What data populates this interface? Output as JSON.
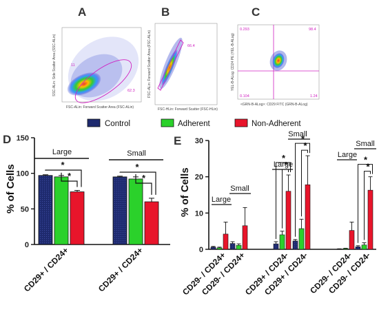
{
  "panels": {
    "A": "A",
    "B": "B",
    "C": "C",
    "D": "D",
    "E": "E"
  },
  "legend": [
    {
      "label": "Control",
      "color": "#1e2a6e"
    },
    {
      "label": "Adherent",
      "color": "#2bd12b"
    },
    {
      "label": "Non-Adherent",
      "color": "#e8152b"
    }
  ],
  "flow": {
    "A": {
      "xlabel": "FSC-ALin: Forward Scatter Area (FSC-ALin)",
      "ylabel": "SSC-ALin: Side Scatter Area (SSC-ALin)",
      "gate_value": "62.3",
      "inner_value": "11"
    },
    "B": {
      "xlabel": "FSC-HLin: Forward Scatter (FSC-HLin)",
      "ylabel": "FSC-ALin: Forward Scatter Area (FSC-ALin)",
      "gate_value": "66.4"
    },
    "C": {
      "xlabel": "<GRN-B-ALog>: CD29 FITC (GRN-B-ALog)",
      "ylabel": "YEL-B-ALog: CD24 PE (YEL-B-ALog)",
      "q_tl": "0.293",
      "q_tr": "98.4",
      "q_bl": "0.104",
      "q_br": "1.24"
    }
  },
  "chart_data": [
    {
      "panel": "D",
      "type": "bar",
      "ylabel": "% of Cells",
      "ylim": [
        0,
        150
      ],
      "yticks": [
        0,
        50,
        100,
        150
      ],
      "groups": [
        {
          "label": "CD29+ / CD24+",
          "size": "Large",
          "values": [
            97,
            95,
            74
          ],
          "errors": [
            1,
            2,
            2
          ]
        },
        {
          "label": "CD29+ / CD24+",
          "size": "Small",
          "values": [
            95,
            92,
            60
          ],
          "errors": [
            1,
            3,
            5
          ]
        }
      ],
      "series": [
        "Control",
        "Adherent",
        "Non-Adherent"
      ],
      "significance": [
        "*",
        "*",
        "*",
        "*"
      ]
    },
    {
      "panel": "E",
      "type": "bar",
      "ylabel": "% of Cells",
      "ylim": [
        0,
        30
      ],
      "yticks": [
        0,
        10,
        20,
        30
      ],
      "groups": [
        {
          "label": "CD29- / CD24+",
          "size": "Large",
          "values": [
            0.6,
            0.4,
            4.2
          ],
          "errors": [
            0.2,
            0.2,
            3.3
          ]
        },
        {
          "label": "CD29- / CD24+",
          "size": "Small",
          "values": [
            1.6,
            1.1,
            6.5
          ],
          "errors": [
            0.5,
            0.4,
            5.0
          ]
        },
        {
          "label": "CD29+ / CD24-",
          "size": "Large",
          "values": [
            1.5,
            4.0,
            16.0
          ],
          "errors": [
            0.6,
            1.0,
            4.5
          ]
        },
        {
          "label": "CD29+ / CD24-",
          "size": "Small",
          "values": [
            2.3,
            5.7,
            17.8
          ],
          "errors": [
            0.4,
            2.6,
            8.0
          ]
        },
        {
          "label": "CD29- / CD24-",
          "size": "Large",
          "values": [
            0.1,
            0.2,
            5.2
          ],
          "errors": [
            0.05,
            0.1,
            2.3
          ]
        },
        {
          "label": "CD29- / CD24-",
          "size": "Small",
          "values": [
            0.7,
            1.2,
            16.3
          ],
          "errors": [
            0.3,
            0.6,
            3.7
          ]
        }
      ],
      "series": [
        "Control",
        "Adherent",
        "Non-Adherent"
      ],
      "significance": [
        "*",
        "*",
        "*",
        "*",
        "*",
        "*"
      ]
    }
  ]
}
